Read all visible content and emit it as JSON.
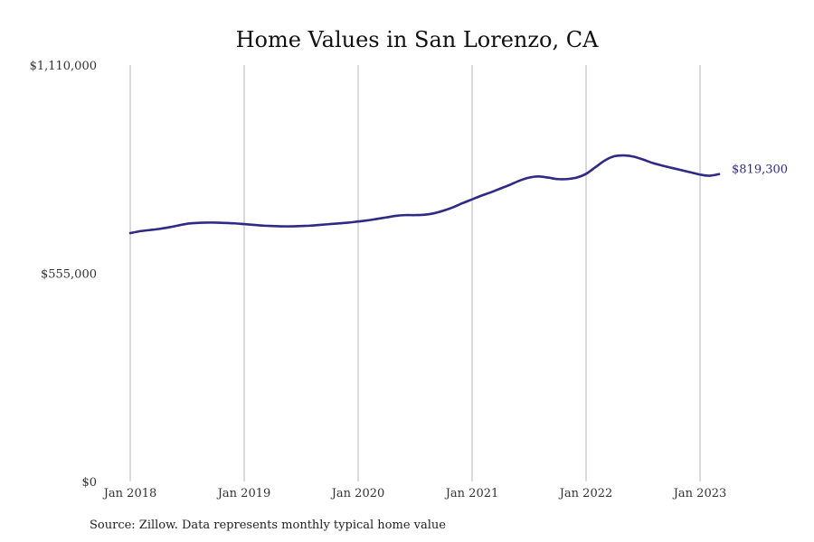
{
  "chart_data": {
    "type": "line",
    "title": "Home Values in San Lorenzo, CA",
    "xlabel": "",
    "ylabel": "",
    "x_start": "2018-01",
    "x_end": "2023-04",
    "xlim": [
      "2018-01",
      "2023-09"
    ],
    "ylim": [
      0,
      1110000
    ],
    "y_ticks": [
      {
        "value": 0,
        "label": "$0"
      },
      {
        "value": 555000,
        "label": "$555,000"
      },
      {
        "value": 1110000,
        "label": "$1,110,000"
      }
    ],
    "x_ticks": [
      {
        "value": "2018-01",
        "label": "Jan 2018"
      },
      {
        "value": "2019-01",
        "label": "Jan 2019"
      },
      {
        "value": "2020-01",
        "label": "Jan 2020"
      },
      {
        "value": "2021-01",
        "label": "Jan 2021"
      },
      {
        "value": "2022-01",
        "label": "Jan 2022"
      },
      {
        "value": "2023-01",
        "label": "Jan 2023"
      }
    ],
    "grid": {
      "vertical": true,
      "horizontal": false
    },
    "legend": "none",
    "series": [
      {
        "color": "#2e2a86",
        "end_label": "$819,300",
        "values": [
          662000,
          667000,
          670000,
          673000,
          677000,
          682000,
          687000,
          689000,
          690000,
          690000,
          689000,
          688000,
          686000,
          684000,
          682000,
          681000,
          680000,
          680000,
          681000,
          682000,
          684000,
          686000,
          688000,
          690000,
          693000,
          696000,
          700000,
          704000,
          708000,
          710000,
          710000,
          711000,
          715000,
          722000,
          731000,
          742000,
          752000,
          762000,
          771000,
          781000,
          791000,
          802000,
          810000,
          813000,
          810000,
          806000,
          806000,
          810000,
          820000,
          838000,
          856000,
          867000,
          869000,
          866000,
          858000,
          849000,
          842000,
          836000,
          830000,
          824000,
          818000,
          815000,
          819300
        ]
      }
    ]
  },
  "source": {
    "text": "Source: Zillow. Data represents monthly typical home value"
  }
}
